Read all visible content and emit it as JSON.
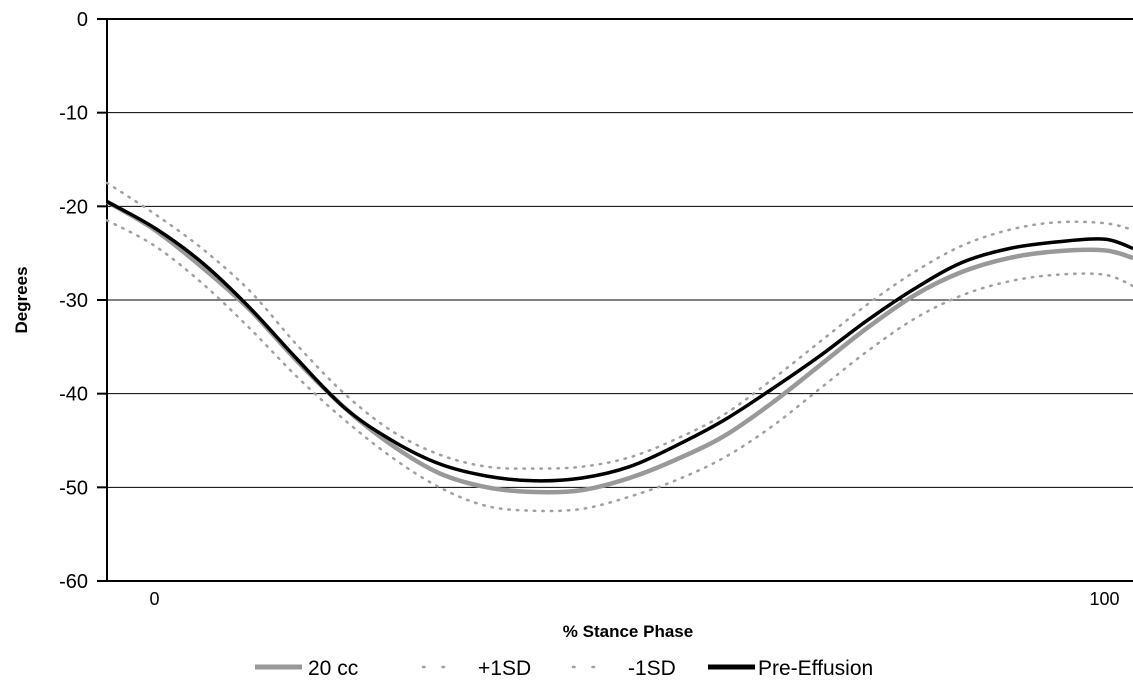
{
  "chart_data": {
    "type": "line",
    "xlabel": "% Stance Phase",
    "ylabel": "Degrees",
    "xlim": [
      -5,
      103
    ],
    "ylim": [
      -60,
      0
    ],
    "x_tick_labels": [
      {
        "value": 0,
        "label": "0"
      },
      {
        "value": 100,
        "label": "100"
      }
    ],
    "y_ticks": [
      0,
      -10,
      -20,
      -30,
      -40,
      -50,
      -60
    ],
    "grid": true,
    "legend_position": "bottom",
    "x": [
      -5,
      0,
      5,
      10,
      15,
      20,
      25,
      30,
      35,
      40,
      45,
      50,
      55,
      60,
      65,
      70,
      75,
      80,
      85,
      90,
      95,
      100,
      103
    ],
    "series": [
      {
        "name": "20 cc",
        "style": "solid",
        "color": "#999999",
        "values": [
          -19.5,
          -22.5,
          -26.5,
          -31.0,
          -36.5,
          -41.5,
          -45.5,
          -48.5,
          -50.0,
          -50.5,
          -50.3,
          -49.0,
          -47.0,
          -44.5,
          -41.0,
          -37.0,
          -33.0,
          -29.5,
          -27.0,
          -25.5,
          -24.8,
          -24.7,
          -25.5
        ]
      },
      {
        "name": "+1SD",
        "style": "dotted",
        "color": "#a0a0a0",
        "values": [
          -17.5,
          -20.8,
          -24.5,
          -29.0,
          -34.8,
          -40.0,
          -44.0,
          -46.5,
          -47.8,
          -48.0,
          -47.8,
          -46.8,
          -44.8,
          -42.2,
          -38.5,
          -34.5,
          -30.5,
          -27.0,
          -24.2,
          -22.5,
          -21.7,
          -21.8,
          -22.5
        ]
      },
      {
        "name": "-1SD",
        "style": "dotted",
        "color": "#a0a0a0",
        "values": [
          -21.5,
          -24.2,
          -28.2,
          -33.0,
          -38.2,
          -42.8,
          -46.8,
          -50.0,
          -52.0,
          -52.5,
          -52.3,
          -51.0,
          -49.2,
          -46.8,
          -43.5,
          -39.5,
          -35.5,
          -32.0,
          -29.5,
          -28.0,
          -27.3,
          -27.3,
          -28.5
        ]
      },
      {
        "name": "Pre-Effusion",
        "style": "solid",
        "color": "#000000",
        "values": [
          -19.5,
          -22.3,
          -26.0,
          -30.8,
          -36.3,
          -41.5,
          -45.0,
          -47.5,
          -48.8,
          -49.3,
          -49.0,
          -47.8,
          -45.5,
          -42.8,
          -39.5,
          -36.0,
          -32.2,
          -28.8,
          -26.0,
          -24.5,
          -23.8,
          -23.5,
          -24.5
        ]
      }
    ]
  },
  "legend": {
    "items": [
      {
        "label": "20 cc",
        "color": "#999999",
        "style": "solid"
      },
      {
        "label": "+1SD",
        "color": "#a0a0a0",
        "style": "dotted"
      },
      {
        "label": "-1SD",
        "color": "#a0a0a0",
        "style": "dotted"
      },
      {
        "label": "Pre-Effusion",
        "color": "#000000",
        "style": "solid"
      }
    ]
  }
}
